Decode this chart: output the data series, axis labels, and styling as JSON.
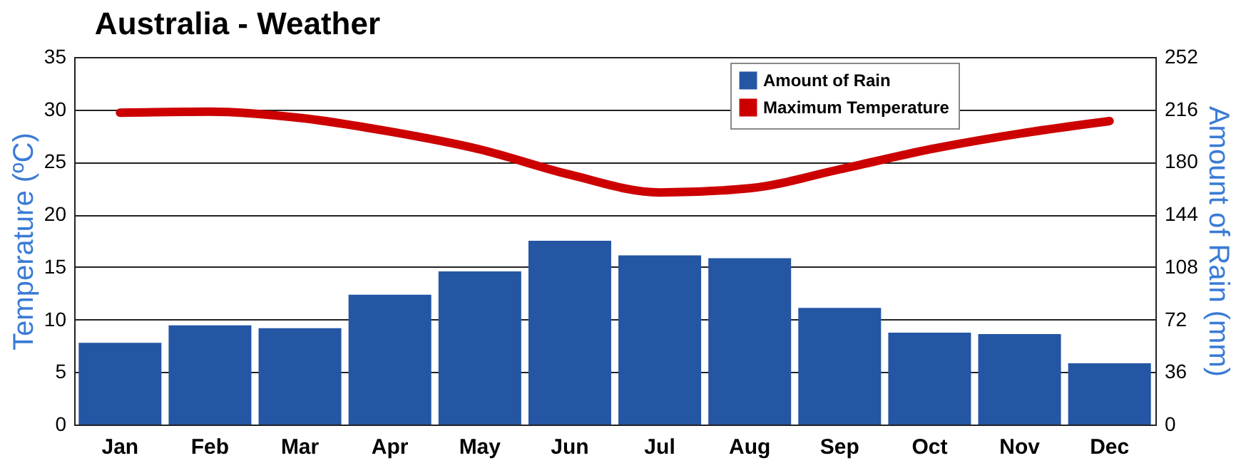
{
  "chart_data": {
    "type": "bar",
    "title": "Australia - Weather",
    "ylabel": "Temperature (ºC)",
    "y2label": "Amount of Rain (mm)",
    "categories": [
      "Jan",
      "Feb",
      "Mar",
      "Apr",
      "May",
      "Jun",
      "Jul",
      "Aug",
      "Sep",
      "Oct",
      "Nov",
      "Dec"
    ],
    "series": [
      {
        "name": "Amount of Rain",
        "axis": "y2",
        "color": "#2456a4",
        "values": [
          56,
          68,
          66,
          89,
          105,
          126,
          116,
          114,
          80,
          63,
          62,
          42
        ]
      },
      {
        "name": "Maximum Temperature",
        "type": "line",
        "color": "#cc0000",
        "values": [
          29.7,
          29.8,
          29.2,
          27.9,
          26.2,
          23.8,
          22.1,
          22.5,
          24.3,
          26.2,
          27.7,
          28.9
        ]
      }
    ],
    "ylim": [
      0,
      35
    ],
    "yticks": [
      0,
      5,
      10,
      15,
      20,
      25,
      30,
      35
    ],
    "y2lim": [
      0,
      252
    ],
    "y2ticks": [
      0,
      36,
      72,
      108,
      144,
      180,
      216,
      252
    ],
    "grid": "y",
    "legend": "top right"
  }
}
